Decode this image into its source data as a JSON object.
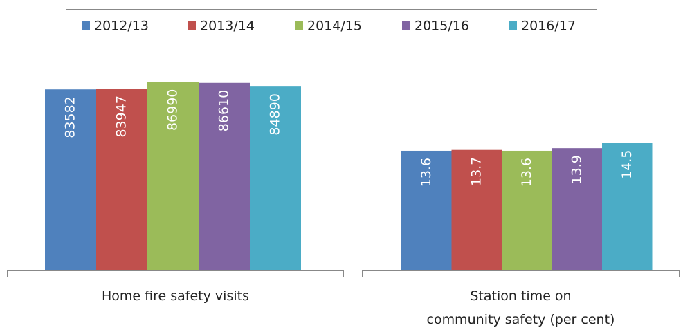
{
  "chart_data": [
    {
      "type": "bar",
      "categories": [
        "Home fire safety visits"
      ],
      "series": [
        {
          "name": "2012/13",
          "color": "#4f81bd",
          "values": [
            83582
          ]
        },
        {
          "name": "2013/14",
          "color": "#c0504d",
          "values": [
            83947
          ]
        },
        {
          "name": "2014/15",
          "color": "#9bbb59",
          "values": [
            86990
          ]
        },
        {
          "name": "2015/16",
          "color": "#8064a2",
          "values": [
            86610
          ]
        },
        {
          "name": "2016/17",
          "color": "#4bacc6",
          "values": [
            84890
          ]
        }
      ],
      "ylim": [
        0,
        100000
      ],
      "legend": "top"
    },
    {
      "type": "bar",
      "categories": [
        "Station time on\ncommunity safety (per cent)"
      ],
      "series": [
        {
          "color": "#4f81bd",
          "values": [
            13.6
          ]
        },
        {
          "color": "#c0504d",
          "values": [
            13.7
          ]
        },
        {
          "color": "#9bbb59",
          "values": [
            13.6
          ]
        },
        {
          "color": "#8064a2",
          "values": [
            13.9
          ]
        },
        {
          "color": "#4bacc6",
          "values": [
            14.5
          ]
        }
      ],
      "ylim": [
        0,
        20
      ]
    }
  ]
}
